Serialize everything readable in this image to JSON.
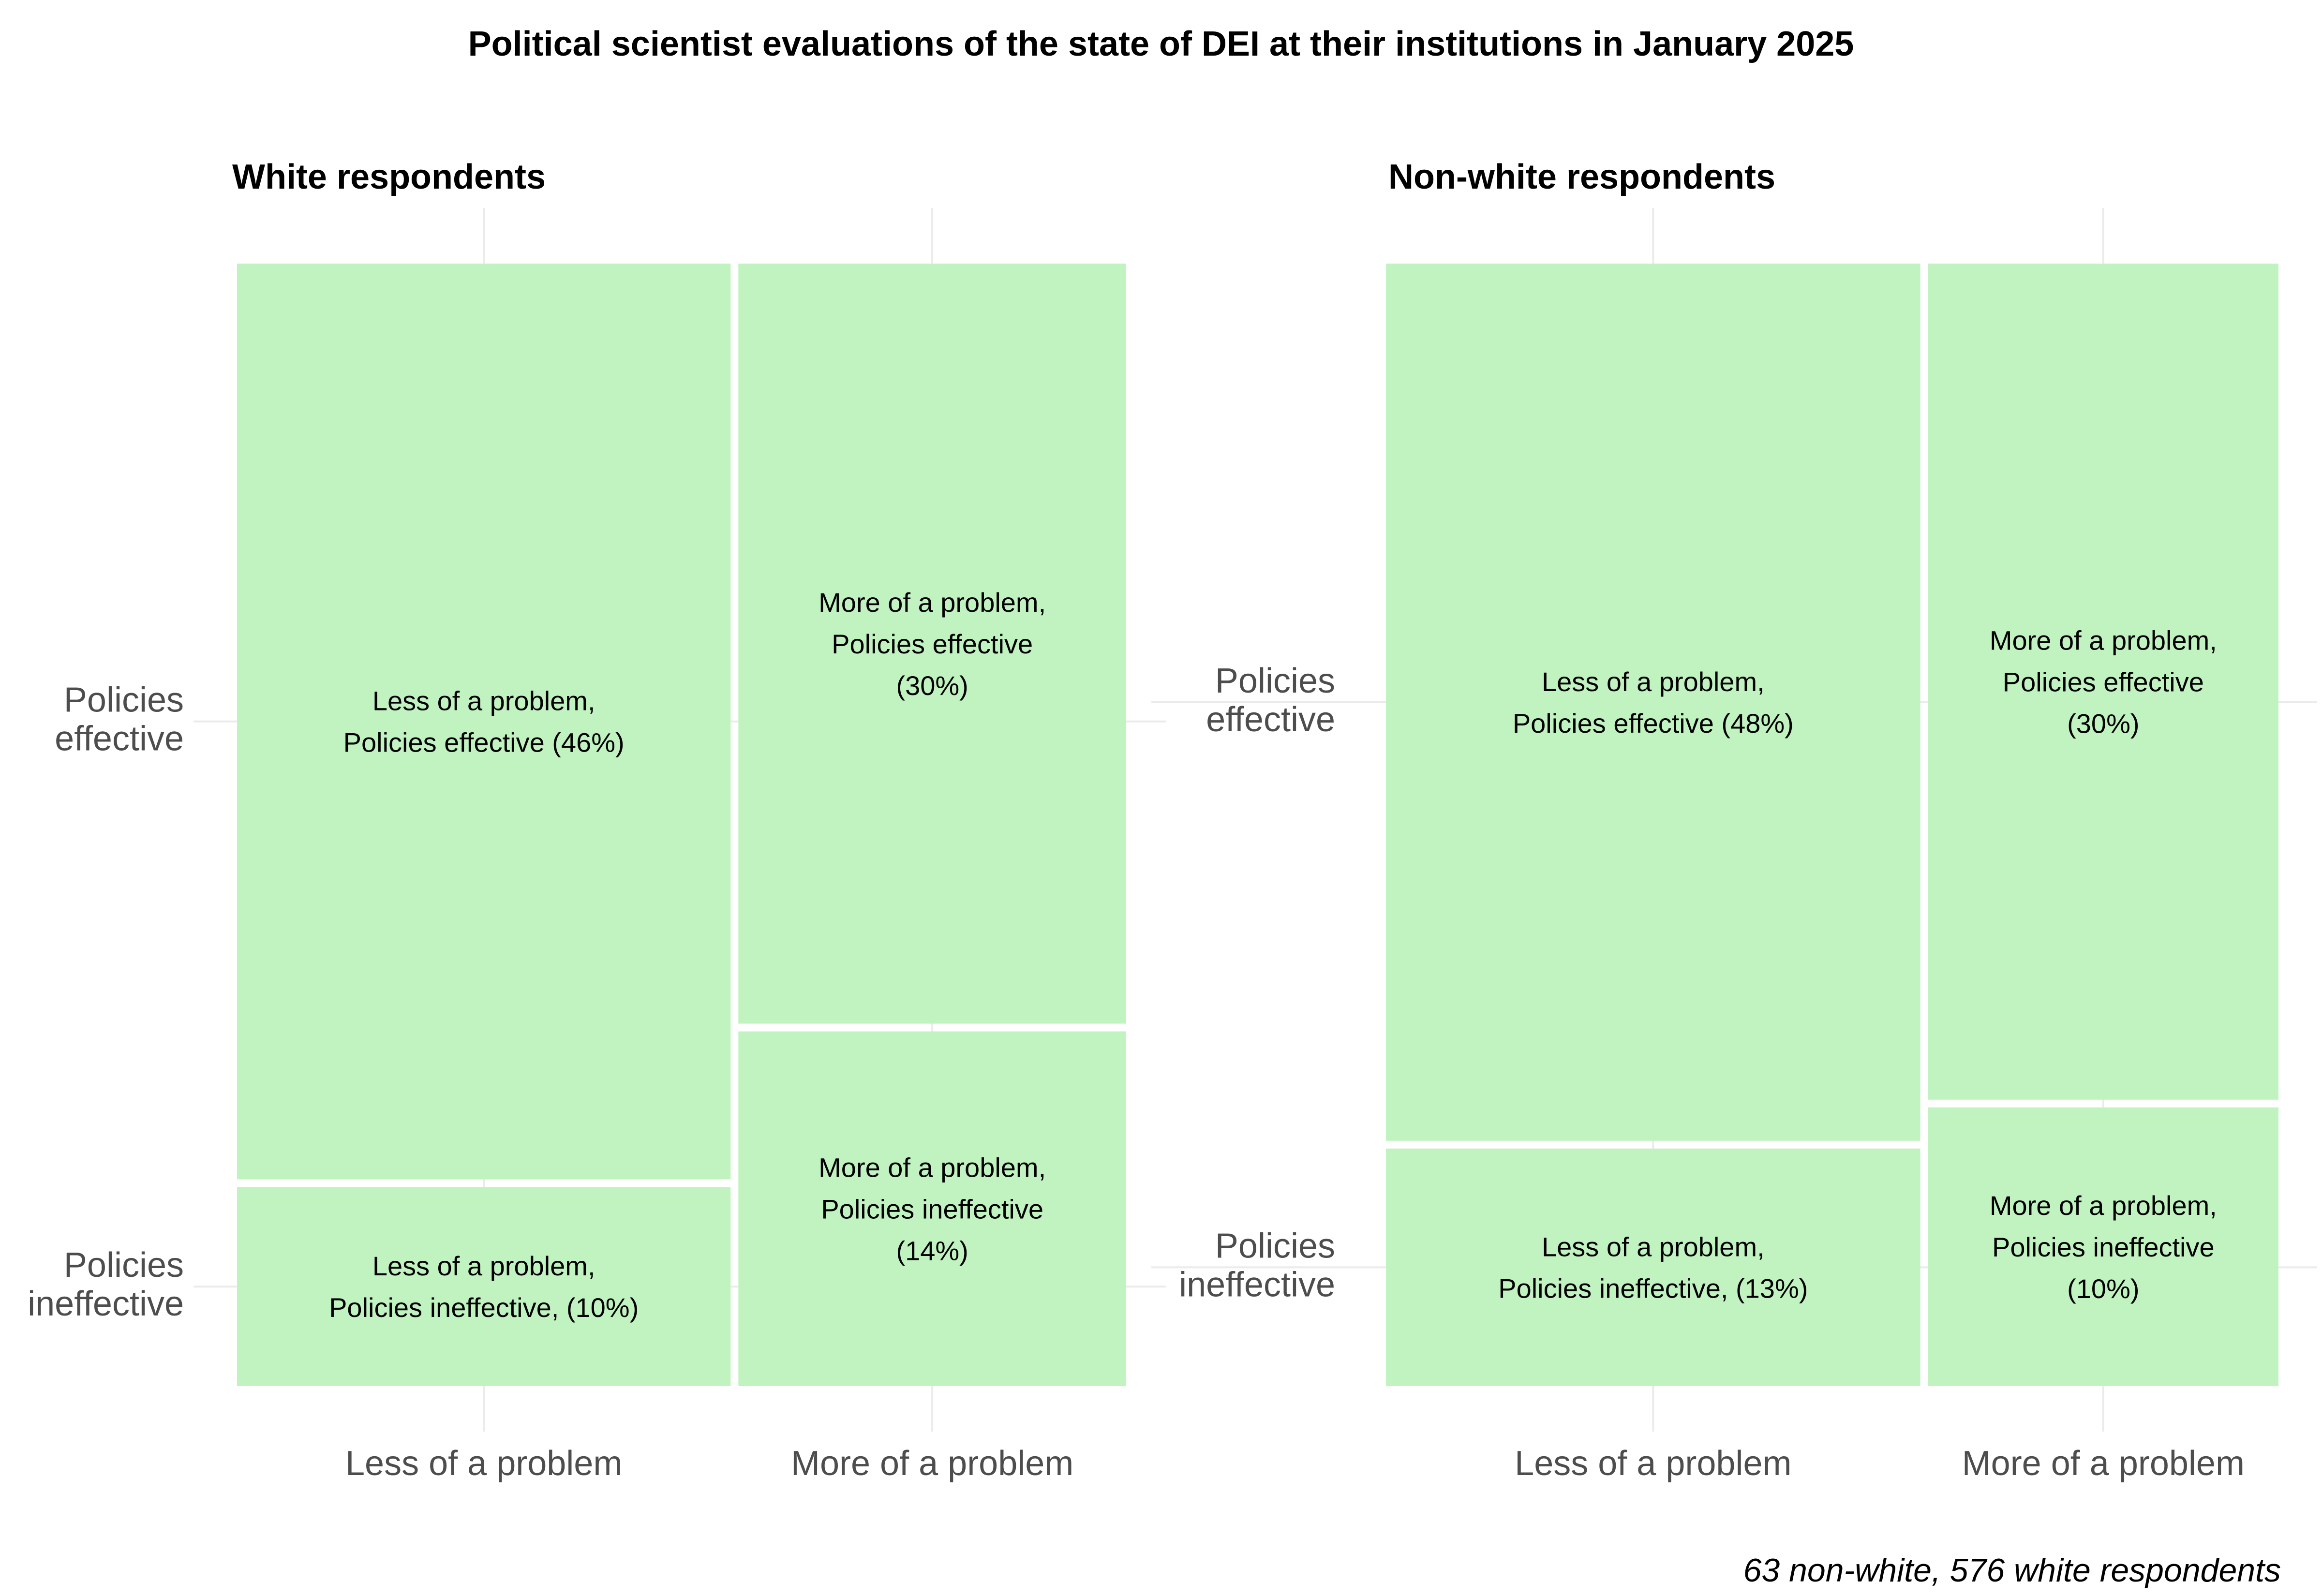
{
  "chart_data": {
    "type": "mosaic",
    "title": "Political scientist evaluations of the state of DEI at their institutions in January 2025",
    "caption": "63 non-white, 576 white respondents",
    "fill_color": "#c0f3c0",
    "grid_color": "#ebebeb",
    "x_categories": [
      "Less of a problem",
      "More of a problem"
    ],
    "y_categories": [
      "Policies effective",
      "Policies ineffective"
    ],
    "y_tick_labels": [
      [
        "Policies",
        "effective"
      ],
      [
        "Policies",
        "ineffective"
      ]
    ],
    "panels": [
      {
        "title": "White respondents",
        "cells": [
          {
            "x": "Less of a problem",
            "y": "Policies effective",
            "percent": 46,
            "label": [
              "Less of a problem,",
              "Policies effective (46%)"
            ]
          },
          {
            "x": "Less of a problem",
            "y": "Policies ineffective",
            "percent": 10,
            "label": [
              "Less of a problem,",
              "Policies ineffective, (10%)"
            ]
          },
          {
            "x": "More of a problem",
            "y": "Policies effective",
            "percent": 30,
            "label": [
              "More of a problem,",
              "Policies effective",
              "(30%)"
            ]
          },
          {
            "x": "More of a problem",
            "y": "Policies ineffective",
            "percent": 14,
            "label": [
              "More of a problem,",
              "Policies ineffective",
              "(14%)"
            ]
          }
        ]
      },
      {
        "title": "Non-white respondents",
        "cells": [
          {
            "x": "Less of a problem",
            "y": "Policies effective",
            "percent": 48,
            "label": [
              "Less of a problem,",
              "Policies effective (48%)"
            ]
          },
          {
            "x": "Less of a problem",
            "y": "Policies ineffective",
            "percent": 13,
            "label": [
              "Less of a problem,",
              "Policies ineffective, (13%)"
            ]
          },
          {
            "x": "More of a problem",
            "y": "Policies effective",
            "percent": 30,
            "label": [
              "More of a problem,",
              "Policies effective",
              "(30%)"
            ]
          },
          {
            "x": "More of a problem",
            "y": "Policies ineffective",
            "percent": 10,
            "label": [
              "More of a problem,",
              "Policies ineffective",
              "(10%)"
            ]
          }
        ]
      }
    ]
  }
}
